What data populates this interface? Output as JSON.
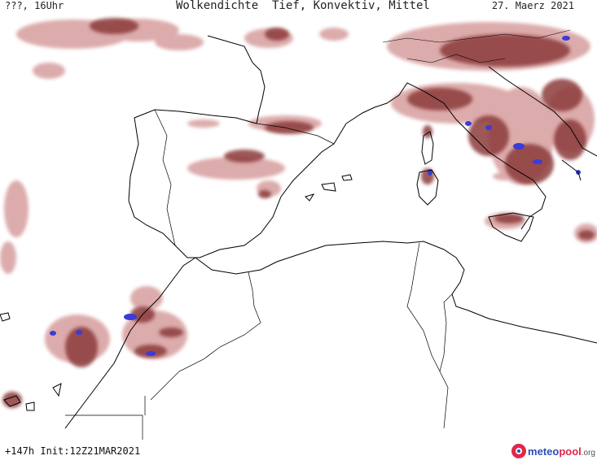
{
  "header": {
    "left": "???, 16Uhr",
    "title": "Wolkendichte  Tief, Konvektiv, Mittel",
    "date": "27. Maerz 2021"
  },
  "footer": {
    "forecast": "+147h  Init:12Z21MAR2021",
    "brand_meteo": "meteo",
    "brand_pool": "pool",
    "brand_tld": ".org"
  },
  "colors": {
    "cloud_light": "#d9a3a3",
    "cloud_mid": "#b26666",
    "cloud_dark": "#8c3a3a",
    "convective": "#3b3bd6",
    "coastline": "#000000",
    "brand_red": "#e2264b",
    "brand_blue": "#2b4fb5"
  }
}
